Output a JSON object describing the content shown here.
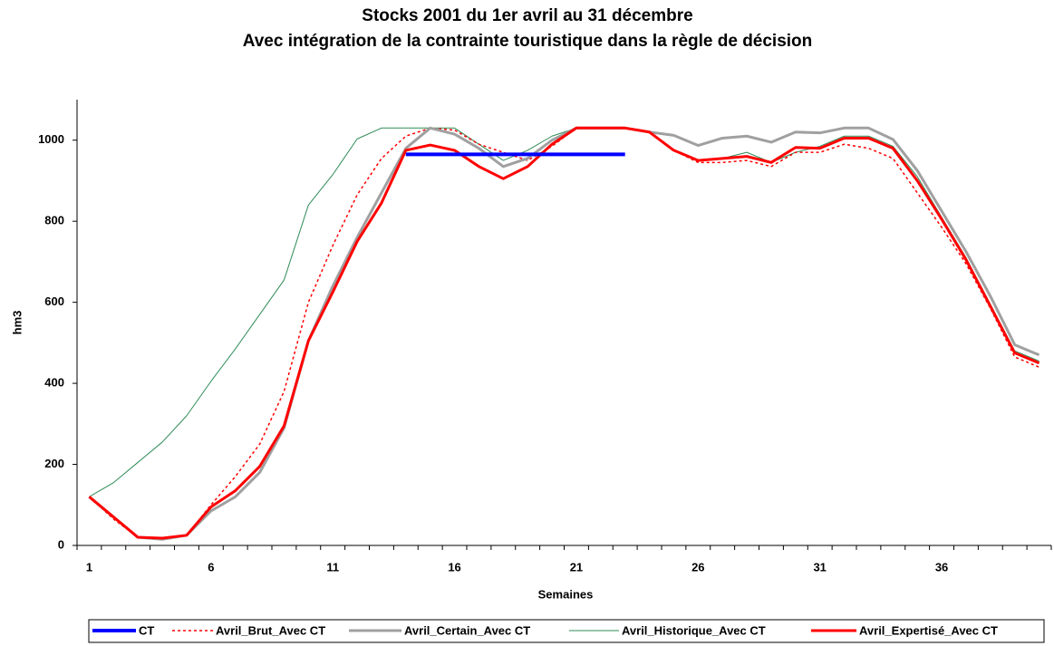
{
  "chart_data": {
    "type": "line",
    "title": [
      "Stocks 2001 du 1er avril au 31 décembre",
      "Avec intégration de la contrainte touristique dans la règle de décision"
    ],
    "xlabel": "Semaines",
    "ylabel": "hm3",
    "categories": [
      "1",
      null,
      null,
      null,
      null,
      "6",
      null,
      null,
      null,
      null,
      "11",
      null,
      null,
      null,
      null,
      "16",
      null,
      null,
      null,
      null,
      "21",
      null,
      null,
      null,
      null,
      "26",
      null,
      null,
      null,
      null,
      "31",
      null,
      null,
      null,
      null,
      "36",
      null,
      null,
      null,
      null
    ],
    "ylim": [
      0,
      1100
    ],
    "yticks": [
      0,
      200,
      400,
      600,
      800,
      1000
    ],
    "legend": "bottom",
    "series": [
      {
        "name": "CT",
        "color": "#0000ff",
        "width": 4,
        "dash": false,
        "values": [
          null,
          null,
          null,
          null,
          null,
          null,
          null,
          null,
          null,
          null,
          null,
          null,
          null,
          965,
          965,
          965,
          965,
          965,
          965,
          965,
          965,
          965,
          965,
          null,
          null,
          null,
          null,
          null,
          null,
          null,
          null,
          null,
          null,
          null,
          null,
          null,
          null,
          null,
          null,
          null
        ]
      },
      {
        "name": "Avril_Brut_Avec CT",
        "color": "#ff0000",
        "width": 1.5,
        "dash": true,
        "values": [
          120,
          65,
          20,
          15,
          25,
          100,
          170,
          250,
          380,
          600,
          740,
          865,
          955,
          1010,
          1030,
          1025,
          990,
          970,
          950,
          985,
          1030,
          1030,
          1030,
          1020,
          975,
          945,
          945,
          950,
          935,
          970,
          970,
          990,
          980,
          955,
          870,
          785,
          695,
          585,
          465,
          440
        ]
      },
      {
        "name": "Avril_Certain_Avec CT",
        "color": "#a0a0a0",
        "width": 3,
        "dash": false,
        "values": [
          120,
          70,
          20,
          15,
          25,
          85,
          120,
          180,
          290,
          505,
          640,
          760,
          870,
          980,
          1030,
          1015,
          980,
          935,
          955,
          1000,
          1030,
          1030,
          1030,
          1020,
          1012,
          987,
          1005,
          1010,
          995,
          1020,
          1018,
          1030,
          1030,
          1002,
          925,
          825,
          725,
          615,
          495,
          470
        ]
      },
      {
        "name": "Avril_Historique_Avec CT",
        "color": "#2e8b57",
        "width": 1,
        "dash": false,
        "values": [
          120,
          155,
          205,
          255,
          320,
          405,
          485,
          570,
          655,
          840,
          915,
          1003,
          1030,
          1030,
          1030,
          1030,
          990,
          950,
          975,
          1010,
          1030,
          1030,
          1030,
          1020,
          975,
          950,
          955,
          970,
          945,
          970,
          985,
          1010,
          1010,
          985,
          910,
          810,
          710,
          595,
          480,
          455
        ]
      },
      {
        "name": "Avril_Expertisé_Avec CT",
        "color": "#ff0000",
        "width": 3,
        "dash": false,
        "values": [
          120,
          70,
          20,
          18,
          25,
          95,
          135,
          195,
          295,
          505,
          625,
          750,
          845,
          975,
          988,
          975,
          935,
          905,
          935,
          990,
          1030,
          1030,
          1030,
          1020,
          975,
          950,
          955,
          960,
          945,
          982,
          980,
          1005,
          1005,
          980,
          900,
          805,
          705,
          590,
          475,
          450
        ]
      }
    ]
  }
}
